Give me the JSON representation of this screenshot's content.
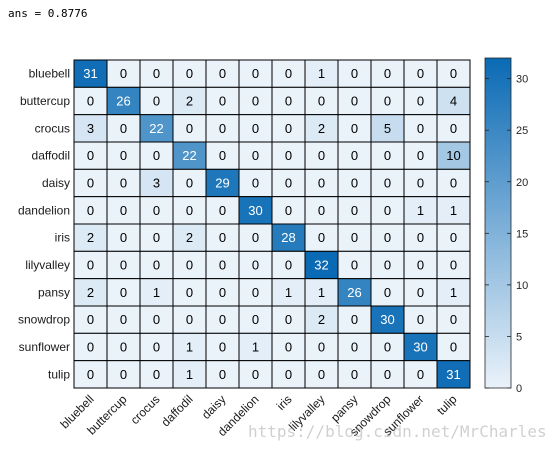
{
  "console": {
    "output": "ans = 0.8776"
  },
  "watermark": {
    "text": "https://blog.csdn.net/MrCharles"
  },
  "colors": {
    "low": "#eaf2fa",
    "high": "#0a6ab4",
    "grid": "#000000",
    "text_dark": "#000000",
    "text_light": "#ffffff"
  },
  "chart_data": {
    "type": "heatmap",
    "title": "",
    "xlabel": "",
    "ylabel": "",
    "rows": [
      "bluebell",
      "buttercup",
      "crocus",
      "daffodil",
      "daisy",
      "dandelion",
      "iris",
      "lilyvalley",
      "pansy",
      "snowdrop",
      "sunflower",
      "tulip"
    ],
    "columns": [
      "bluebell",
      "buttercup",
      "crocus",
      "daffodil",
      "daisy",
      "dandelion",
      "iris",
      "lilyvalley",
      "pansy",
      "snowdrop",
      "sunflower",
      "tulip"
    ],
    "values": [
      [
        31,
        0,
        0,
        0,
        0,
        0,
        0,
        1,
        0,
        0,
        0,
        0
      ],
      [
        0,
        26,
        0,
        2,
        0,
        0,
        0,
        0,
        0,
        0,
        0,
        4
      ],
      [
        3,
        0,
        22,
        0,
        0,
        0,
        0,
        2,
        0,
        5,
        0,
        0
      ],
      [
        0,
        0,
        0,
        22,
        0,
        0,
        0,
        0,
        0,
        0,
        0,
        10
      ],
      [
        0,
        0,
        3,
        0,
        29,
        0,
        0,
        0,
        0,
        0,
        0,
        0
      ],
      [
        0,
        0,
        0,
        0,
        0,
        30,
        0,
        0,
        0,
        0,
        1,
        1
      ],
      [
        2,
        0,
        0,
        2,
        0,
        0,
        28,
        0,
        0,
        0,
        0,
        0
      ],
      [
        0,
        0,
        0,
        0,
        0,
        0,
        0,
        32,
        0,
        0,
        0,
        0
      ],
      [
        2,
        0,
        1,
        0,
        0,
        0,
        1,
        1,
        26,
        0,
        0,
        1
      ],
      [
        0,
        0,
        0,
        0,
        0,
        0,
        0,
        2,
        0,
        30,
        0,
        0
      ],
      [
        0,
        0,
        0,
        1,
        0,
        1,
        0,
        0,
        0,
        0,
        30,
        0
      ],
      [
        0,
        0,
        0,
        1,
        0,
        0,
        0,
        0,
        0,
        0,
        0,
        31
      ]
    ],
    "colorbar": {
      "range": [
        0,
        32
      ],
      "ticks": [
        0,
        5,
        10,
        15,
        20,
        25,
        30
      ],
      "tick_labels": [
        "0",
        "5",
        "10",
        "15",
        "20",
        "25",
        "30"
      ]
    }
  }
}
